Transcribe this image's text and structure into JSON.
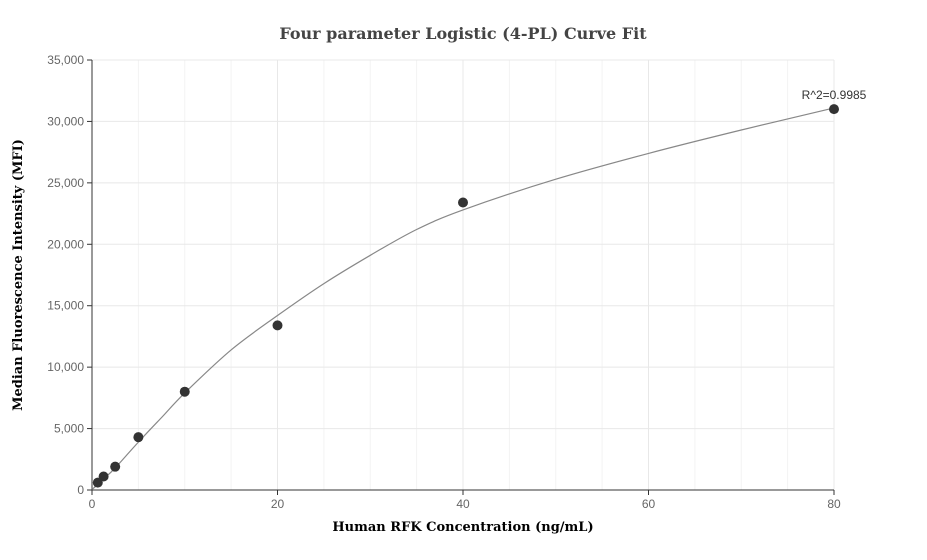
{
  "chart_data": {
    "type": "scatter",
    "title": "Four parameter Logistic (4-PL) Curve Fit",
    "xlabel": "Human RFK Concentration (ng/mL)",
    "ylabel": "Median Fluorescence Intensity (MFI)",
    "xlim": [
      0,
      80
    ],
    "ylim": [
      0,
      35000
    ],
    "x_ticks": [
      0,
      20,
      40,
      60,
      80
    ],
    "y_ticks": [
      0,
      5000,
      10000,
      15000,
      20000,
      25000,
      30000,
      35000
    ],
    "x_tick_labels": [
      "0",
      "20",
      "40",
      "60",
      "80"
    ],
    "y_tick_labels": [
      "0",
      "5,000",
      "10,000",
      "15,000",
      "20,000",
      "25,000",
      "30,000",
      "35,000"
    ],
    "grid": true,
    "series": [
      {
        "x": [
          0.625,
          1.25,
          2.5,
          5,
          10,
          20,
          40,
          80
        ],
        "y": [
          600,
          1100,
          1900,
          4300,
          8000,
          13400,
          23400,
          31000
        ]
      }
    ],
    "fit_curve": {
      "model": "4-PL",
      "x": [
        0,
        0.625,
        1.25,
        2.5,
        5,
        7.5,
        10,
        15,
        20,
        25,
        30,
        35,
        40,
        50,
        60,
        70,
        80
      ],
      "y": [
        50,
        450,
        900,
        1800,
        3900,
        5900,
        7900,
        11400,
        14200,
        16800,
        19100,
        21200,
        22800,
        25300,
        27400,
        29300,
        31100
      ]
    },
    "annotation": "R^2=0.9985",
    "colors": {
      "point": "#333333",
      "curve": "#888888",
      "grid": "#e8e8e8",
      "axis": "#333333"
    }
  }
}
